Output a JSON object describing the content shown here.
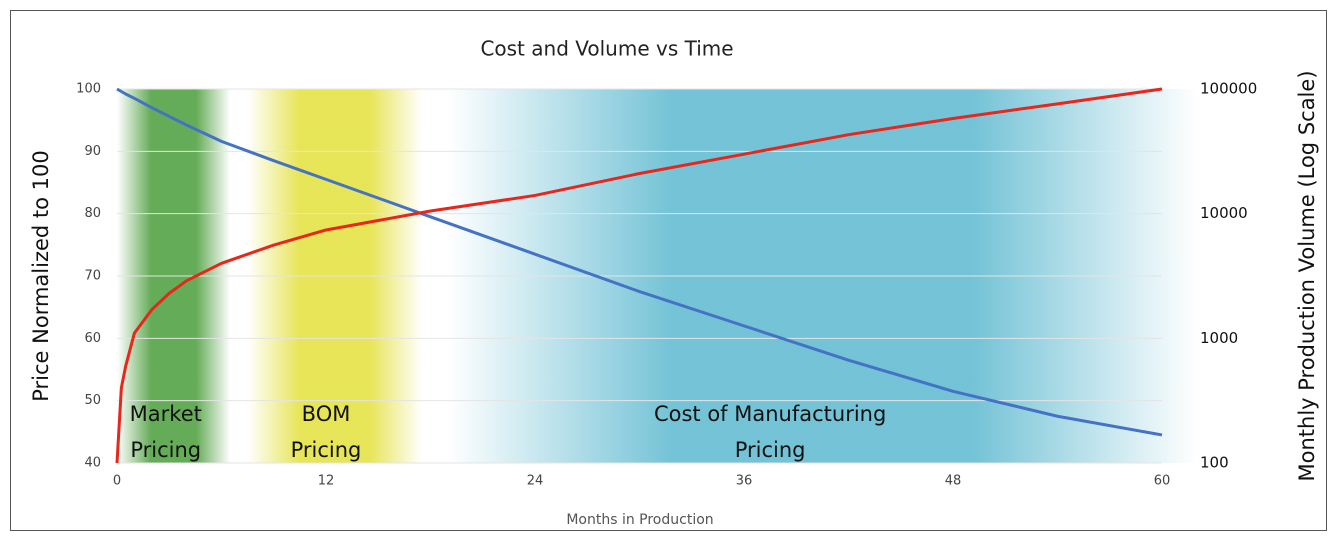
{
  "chart_data": {
    "type": "line",
    "title": "Cost and Volume vs Time",
    "x_label": "Months in Production",
    "y_label": "Price Normalized to 100",
    "y2_label": "Monthly Production Volume (Log Scale)",
    "x": [
      0,
      0.25,
      0.5,
      1,
      2,
      3,
      4,
      6,
      9,
      12,
      18,
      24,
      30,
      36,
      42,
      48,
      54,
      60
    ],
    "series": [
      {
        "name": "Price",
        "color": "#4472c4",
        "values": [
          100,
          99.6,
          99.2,
          98.5,
          97,
          95.6,
          94.2,
          91.6,
          88.5,
          85.5,
          79.5,
          73.5,
          67.5,
          62,
          56.5,
          51.5,
          47.5,
          44.5
        ]
      },
      {
        "name": "Volume",
        "color": "#e8261c",
        "axis": "y2",
        "values": [
          100,
          400,
          600,
          1100,
          1700,
          2300,
          2900,
          4000,
          5600,
          7400,
          10500,
          14000,
          21000,
          30000,
          43000,
          58000,
          76000,
          100000
        ]
      }
    ],
    "xlim": [
      0,
      60
    ],
    "xticks": [
      0,
      12,
      24,
      36,
      48,
      60
    ],
    "ylim": [
      40,
      100
    ],
    "yticks": [
      40,
      50,
      60,
      70,
      80,
      90,
      100
    ],
    "y2lim": [
      100,
      100000
    ],
    "y2ticks": [
      100,
      1000,
      10000,
      100000
    ],
    "y2_log": true,
    "grid": true,
    "regions": [
      {
        "label_lines": [
          "Market",
          "Pricing"
        ],
        "x": [
          0,
          6.5
        ],
        "color": "#4a9e3a",
        "label_x": 2.8
      },
      {
        "label_lines": [
          "BOM",
          "Pricing"
        ],
        "x": [
          7.5,
          17.5
        ],
        "color": "#e3e03a",
        "label_x": 12
      },
      {
        "label_lines": [
          "Cost of Manufacturing",
          "Pricing"
        ],
        "x": [
          19,
          62
        ],
        "color": "#5bb8cf",
        "label_x": 37.5
      }
    ]
  }
}
